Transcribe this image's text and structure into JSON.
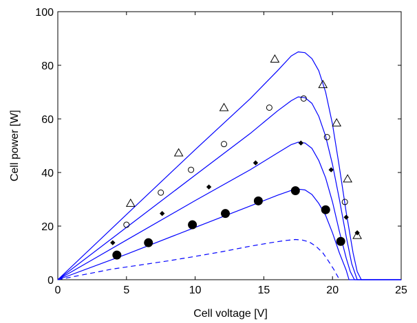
{
  "chart_data": {
    "type": "line",
    "title": "",
    "xlabel": "Cell voltage [V]",
    "ylabel": "Cell power [W]",
    "xlim": [
      0,
      25
    ],
    "ylim": [
      0,
      100
    ],
    "xticks": [
      0,
      5,
      10,
      15,
      20,
      25
    ],
    "yticks": [
      0,
      20,
      40,
      60,
      80,
      100
    ],
    "xtick_labels": [
      "0",
      "5",
      "10",
      "15",
      "20",
      "25"
    ],
    "ytick_labels": [
      "0",
      "20",
      "40",
      "60",
      "80",
      "100"
    ],
    "grid": false,
    "line_color": "#0000ff",
    "marker_color": "#000000",
    "series": [
      {
        "style": "solid",
        "marker": "triangle",
        "curve": [
          [
            0,
            0
          ],
          [
            5,
            24.3
          ],
          [
            10,
            48.5
          ],
          [
            14,
            67.5
          ],
          [
            16,
            78
          ],
          [
            17,
            83.5
          ],
          [
            17.5,
            85
          ],
          [
            18,
            84.7
          ],
          [
            18.5,
            82.5
          ],
          [
            19,
            78
          ],
          [
            19.5,
            70
          ],
          [
            20,
            58
          ],
          [
            20.5,
            42
          ],
          [
            21,
            25
          ],
          [
            21.5,
            10
          ],
          [
            21.8,
            3
          ],
          [
            22.1,
            0
          ],
          [
            25,
            0
          ]
        ],
        "markers": [
          [
            5.3,
            28.5
          ],
          [
            8.8,
            47.3
          ],
          [
            12.1,
            64.2
          ],
          [
            15.8,
            82.3
          ],
          [
            19.3,
            72.8
          ],
          [
            20.3,
            58.5
          ],
          [
            21.1,
            37.6
          ],
          [
            21.8,
            16.5
          ]
        ]
      },
      {
        "style": "solid",
        "marker": "circle",
        "curve": [
          [
            0,
            0
          ],
          [
            5,
            19.5
          ],
          [
            10,
            39
          ],
          [
            14,
            54.5
          ],
          [
            16,
            63
          ],
          [
            17,
            66.8
          ],
          [
            17.5,
            68.2
          ],
          [
            18,
            67.9
          ],
          [
            18.5,
            65.8
          ],
          [
            19,
            61
          ],
          [
            19.5,
            53.5
          ],
          [
            20,
            43
          ],
          [
            20.5,
            30
          ],
          [
            21,
            16
          ],
          [
            21.4,
            6
          ],
          [
            21.8,
            0
          ],
          [
            25,
            0
          ]
        ],
        "markers": [
          [
            5,
            20.5
          ],
          [
            7.5,
            32.5
          ],
          [
            9.7,
            41
          ],
          [
            12.1,
            50.6
          ],
          [
            15.4,
            64.2
          ],
          [
            17.9,
            67.6
          ],
          [
            19.6,
            53.2
          ],
          [
            20.9,
            29
          ]
        ]
      },
      {
        "style": "solid",
        "marker": "diamond",
        "curve": [
          [
            0,
            0
          ],
          [
            5,
            14.8
          ],
          [
            10,
            29.5
          ],
          [
            14,
            41
          ],
          [
            16,
            47.3
          ],
          [
            17,
            50.4
          ],
          [
            17.5,
            51.3
          ],
          [
            18,
            51
          ],
          [
            18.5,
            49
          ],
          [
            19,
            44.5
          ],
          [
            19.5,
            38
          ],
          [
            20,
            29
          ],
          [
            20.5,
            18
          ],
          [
            21,
            8
          ],
          [
            21.3,
            3
          ],
          [
            21.6,
            0
          ],
          [
            25,
            0
          ]
        ],
        "markers": [
          [
            4,
            13.8
          ],
          [
            7.6,
            24.7
          ],
          [
            11,
            34.6
          ],
          [
            14.4,
            43.6
          ],
          [
            17.7,
            51
          ],
          [
            19.9,
            41
          ],
          [
            21,
            23.3
          ],
          [
            21.8,
            17.5
          ]
        ]
      },
      {
        "style": "solid",
        "marker": "filled-circle",
        "curve": [
          [
            0,
            0
          ],
          [
            5,
            9.5
          ],
          [
            10,
            19.5
          ],
          [
            14,
            27.5
          ],
          [
            16,
            31.5
          ],
          [
            17,
            33.3
          ],
          [
            17.5,
            33.8
          ],
          [
            18,
            33.5
          ],
          [
            18.5,
            31.8
          ],
          [
            19,
            28.5
          ],
          [
            19.5,
            24
          ],
          [
            20,
            17.5
          ],
          [
            20.5,
            10
          ],
          [
            21,
            3.5
          ],
          [
            21.2,
            0
          ],
          [
            25,
            0
          ]
        ],
        "markers": [
          [
            4.3,
            9.2
          ],
          [
            6.6,
            13.8
          ],
          [
            9.8,
            20.5
          ],
          [
            12.2,
            24.7
          ],
          [
            14.6,
            29.4
          ],
          [
            17.3,
            33.2
          ],
          [
            19.5,
            26.1
          ],
          [
            20.6,
            14.3
          ]
        ]
      },
      {
        "style": "dashed",
        "marker": "none",
        "curve": [
          [
            0,
            0
          ],
          [
            2,
            2
          ],
          [
            4,
            4
          ],
          [
            6,
            5.5
          ],
          [
            8,
            7
          ],
          [
            10,
            8.7
          ],
          [
            12,
            10.5
          ],
          [
            14,
            12.5
          ],
          [
            15.5,
            13.8
          ],
          [
            16.5,
            14.6
          ],
          [
            17.3,
            15
          ],
          [
            17.8,
            14.8
          ],
          [
            18.3,
            14.1
          ],
          [
            18.8,
            12.5
          ],
          [
            19.3,
            10
          ],
          [
            19.7,
            7
          ],
          [
            20.1,
            3.8
          ],
          [
            20.4,
            1
          ],
          [
            20.5,
            0
          ]
        ],
        "markers": []
      }
    ]
  }
}
